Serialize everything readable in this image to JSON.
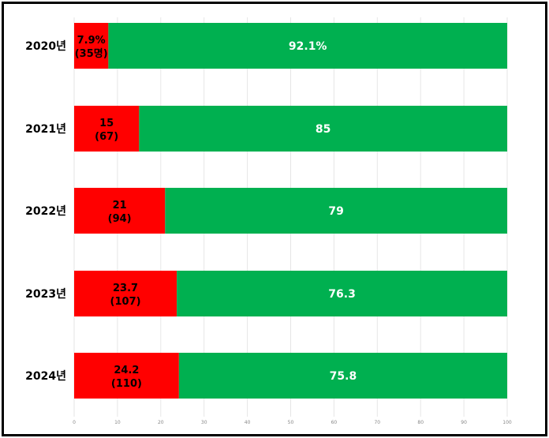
{
  "chart_data": {
    "type": "bar",
    "orientation": "horizontal",
    "stacked": true,
    "categories": [
      "2020년",
      "2021년",
      "2022년",
      "2023년",
      "2024년"
    ],
    "series": [
      {
        "values": [
          7.9,
          15,
          21,
          23.7,
          24.2
        ],
        "color": "#ff0000",
        "labels": [
          "7.9%",
          "15",
          "21",
          "23.7",
          "24.2"
        ],
        "sublabels": [
          "(35명)",
          "(67)",
          "(94)",
          "(107)",
          "(110)"
        ]
      },
      {
        "values": [
          92.1,
          85,
          79,
          76.3,
          75.8
        ],
        "color": "#00b050",
        "labels": [
          "92.1%",
          "85",
          "79",
          "76.3",
          "75.8"
        ]
      }
    ],
    "xlim": [
      0,
      100
    ],
    "xticks": [
      "0",
      "10",
      "20",
      "30",
      "40",
      "50",
      "60",
      "70",
      "80",
      "90",
      "100"
    ],
    "grid": true,
    "title": "",
    "xlabel": "",
    "ylabel": ""
  }
}
